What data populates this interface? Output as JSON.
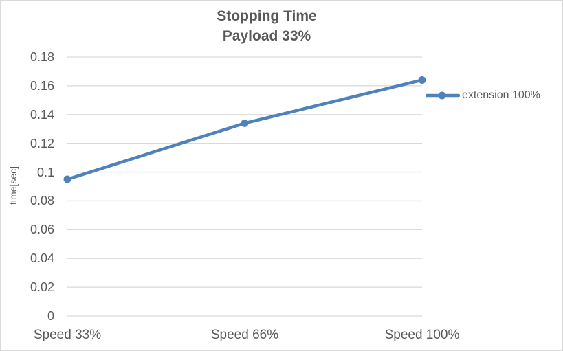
{
  "window": {
    "background": "#FFFFFF",
    "frame_border_color": "#D9D9D9"
  },
  "chart_data": {
    "type": "line",
    "title": "Stopping Time",
    "subtitle": "Payload 33%",
    "xlabel": "",
    "ylabel": "time[sec]",
    "categories": [
      "Speed 33%",
      "Speed 66%",
      "Speed 100%"
    ],
    "series": [
      {
        "name": "extension 100%",
        "values": [
          0.095,
          0.134,
          0.164
        ],
        "color": "#4F81BD",
        "marker": "circle"
      }
    ],
    "ylim": [
      0,
      0.18
    ],
    "ytick_step": 0.02,
    "yticks": [
      0,
      0.02,
      0.04,
      0.06,
      0.08,
      0.1,
      0.12,
      0.14,
      0.16,
      0.18
    ],
    "ytick_labels": [
      "0",
      "0.02",
      "0.04",
      "0.06",
      "0.08",
      "0.1",
      "0.12",
      "0.14",
      "0.16",
      "0.18"
    ],
    "grid": "horizontal",
    "gridline_color": "#D9D9D9",
    "text_color": "#595959",
    "legend_position": "right",
    "legend_entries": [
      "extension 100%"
    ]
  }
}
